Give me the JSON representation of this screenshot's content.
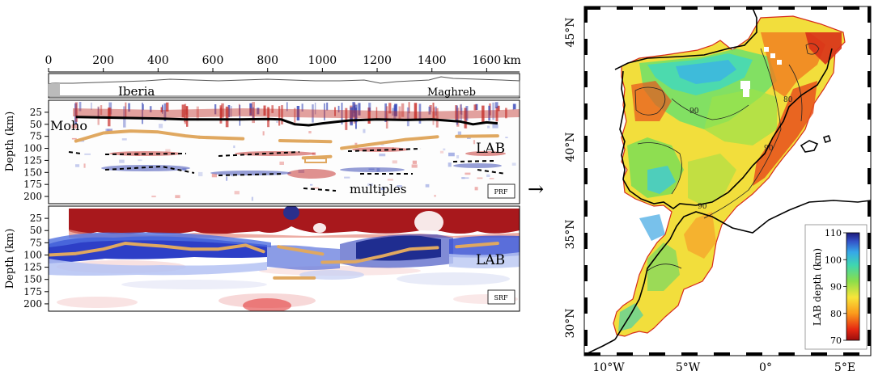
{
  "chart_data": [
    {
      "type": "heatmap",
      "title": "",
      "xaxis": {
        "ticks": [
          0,
          200,
          400,
          600,
          800,
          1000,
          1200,
          1400,
          1600
        ],
        "unit": "km",
        "range": [
          0,
          1720
        ]
      },
      "topography_labels": [
        "Iberia",
        "Maghreb"
      ],
      "panels": [
        {
          "name": "PRF",
          "ylabel": "Depth (km)",
          "yticks": [
            25,
            50,
            75,
            100,
            125,
            150,
            175,
            200
          ],
          "yrange": [
            0,
            215
          ],
          "annotations": [
            "Moho",
            "LAB",
            "multiples"
          ],
          "moho_km": {
            "x": [
              100,
              200,
              300,
              400,
              500,
              600,
              700,
              800,
              850,
              900,
              950,
              1000,
              1050,
              1100,
              1200,
              1300,
              1400,
              1500,
              1550,
              1600,
              1640
            ],
            "depth": [
              35,
              36,
              37,
              38,
              40,
              40,
              40,
              39,
              40,
              50,
              52,
              48,
              45,
              42,
              40,
              41,
              40,
              44,
              50,
              46,
              48
            ]
          },
          "lab_segments_km": [
            {
              "x": [
                100,
                200,
                300,
                400,
                500,
                550
              ],
              "depth": [
                85,
                68,
                64,
                66,
                74,
                77
              ]
            },
            {
              "x": [
                550,
                710
              ],
              "depth": [
                77,
                80
              ]
            },
            {
              "x": [
                845,
                1030
              ],
              "depth": [
                84,
                86
              ]
            },
            {
              "x": [
                930,
                1030
              ],
              "depth": [
                120,
                117
              ]
            },
            {
              "x": [
                1070,
                1200,
                1300,
                1420
              ],
              "depth": [
                100,
                90,
                82,
                76
              ]
            },
            {
              "x": [
                1490,
                1640
              ],
              "depth": [
                75,
                74
              ]
            }
          ]
        },
        {
          "name": "SRF",
          "ylabel": "Depth (km)",
          "yticks": [
            25,
            50,
            75,
            100,
            125,
            150,
            175,
            200
          ],
          "yrange": [
            0,
            215
          ],
          "annotations": [
            "LAB"
          ],
          "lab_segments_km": [
            {
              "x": [
                0,
                100,
                200,
                280,
                340,
                420,
                520,
                620,
                720,
                785
              ],
              "depth": [
                100,
                97,
                88,
                76,
                79,
                82,
                88,
                88,
                80,
                93
              ]
            },
            {
              "x": [
                840,
                1000
              ],
              "depth": [
                83,
                98
              ]
            },
            {
              "x": [
                825,
                970
              ],
              "depth": [
                147,
                147
              ]
            },
            {
              "x": [
                1000,
                1120,
                1220,
                1320,
                1420
              ],
              "depth": [
                115,
                114,
                102,
                88,
                85
              ]
            },
            {
              "x": [
                1490,
                1640
              ],
              "depth": [
                83,
                76
              ]
            }
          ]
        }
      ]
    },
    {
      "type": "heatmap",
      "title": "",
      "xticks": [
        "10°W",
        "5°W",
        "0°",
        "5°E"
      ],
      "yticks": [
        "30°N",
        "35°N",
        "40°N",
        "45°N"
      ],
      "colorbar": {
        "label": "LAB depth (km)",
        "ticks": [
          70,
          80,
          90,
          100,
          110
        ],
        "range": [
          70,
          110
        ]
      },
      "contour_labels": [
        "90",
        "80",
        "90",
        "90"
      ]
    }
  ],
  "arrow": "→"
}
